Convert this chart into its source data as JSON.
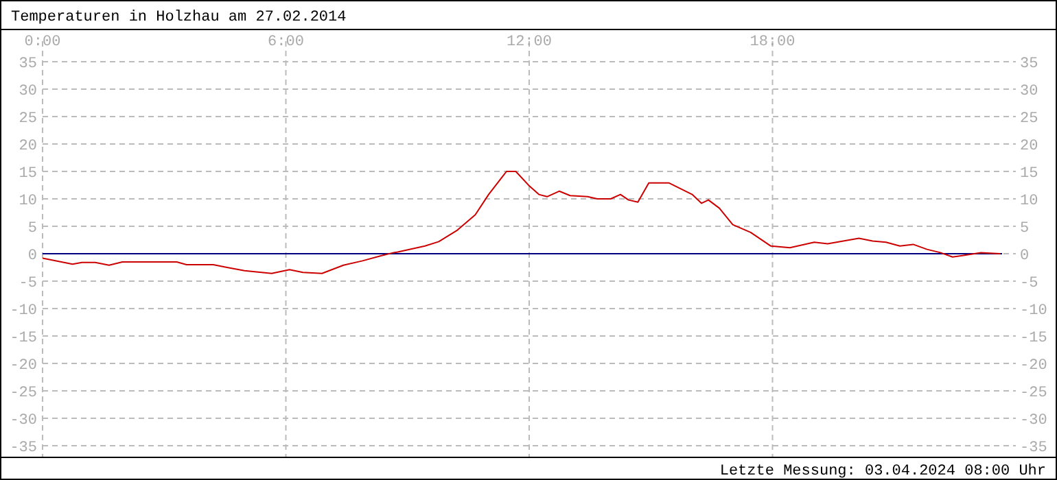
{
  "chart_data": {
    "type": "line",
    "title": "Temperaturen in Holzhau am 27.02.2014",
    "x": [
      0,
      0.74,
      0.97,
      1.3,
      1.64,
      1.97,
      3.31,
      3.55,
      4.21,
      4.55,
      4.98,
      5.65,
      6.09,
      6.42,
      6.89,
      7.42,
      7.89,
      8.33,
      8.66,
      8.76,
      9.43,
      9.77,
      10.23,
      10.67,
      11.0,
      11.44,
      11.67,
      12.01,
      12.24,
      12.44,
      12.74,
      13.01,
      13.44,
      13.68,
      14.01,
      14.25,
      14.45,
      14.68,
      14.95,
      15.45,
      16.02,
      16.25,
      16.42,
      16.69,
      17.02,
      17.46,
      17.96,
      18.43,
      19.03,
      19.36,
      20.13,
      20.47,
      20.8,
      21.14,
      21.47,
      21.81,
      22.14,
      22.44,
      22.71,
      23.14,
      23.61
    ],
    "series": [
      {
        "color": "#cc0000",
        "values": [
          -0.8,
          -1.9,
          -1.6,
          -1.6,
          -2.1,
          -1.5,
          -1.5,
          -2,
          -2,
          -2.5,
          -3.1,
          -3.6,
          -2.9,
          -3.4,
          -3.6,
          -2.1,
          -1.3,
          -0.4,
          0.2,
          0.3,
          1.4,
          2.2,
          4.3,
          7.1,
          10.8,
          15,
          15,
          12.3,
          10.8,
          10.4,
          11.4,
          10.6,
          10.4,
          10,
          10,
          10.8,
          9.8,
          9.4,
          12.9,
          12.9,
          10.8,
          9.2,
          9.8,
          8.3,
          5.3,
          3.9,
          1.4,
          1.1,
          2.1,
          1.8,
          2.8,
          2.3,
          2.1,
          1.4,
          1.7,
          0.8,
          0.2,
          -0.6,
          -0.3,
          0.2,
          0
        ]
      }
    ],
    "xlim": [
      0,
      24
    ],
    "xticks": [
      {
        "value": 0,
        "label": "0:00"
      },
      {
        "value": 6,
        "label": "6:00"
      },
      {
        "value": 12,
        "label": "12:00"
      },
      {
        "value": 18,
        "label": "18:00"
      }
    ],
    "ylim": [
      -35,
      35
    ],
    "yticks": [
      -35,
      -30,
      -25,
      -20,
      -15,
      -10,
      -5,
      0,
      5,
      10,
      15,
      20,
      25,
      30,
      35
    ],
    "y2lim": [
      -35,
      35
    ],
    "y2ticks": [
      -35,
      -30,
      -25,
      -20,
      -15,
      -10,
      -5,
      0,
      5,
      10,
      15,
      20,
      25,
      30,
      35
    ],
    "grid": true,
    "ref_lines": [
      {
        "axis": "y",
        "value": 0,
        "color": "#000080"
      }
    ],
    "annotations": [
      "Letzte Messung: 03.04.2024 08:00 Uhr"
    ]
  }
}
